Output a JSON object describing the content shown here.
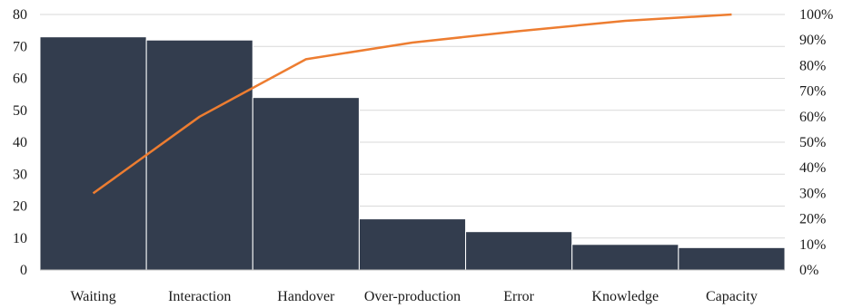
{
  "chart_data": {
    "type": "bar",
    "categories": [
      "Waiting",
      "Interaction",
      "Handover",
      "Over-production",
      "Error",
      "Knowledge",
      "Capacity"
    ],
    "series": [
      {
        "type": "bar",
        "values": [
          73,
          72,
          54,
          16,
          12,
          8,
          7
        ],
        "color": "#333d4e"
      },
      {
        "type": "line",
        "axis": "right",
        "values": [
          30,
          60,
          82.5,
          89,
          93.5,
          97.5,
          100
        ],
        "color": "#ed7d31"
      }
    ],
    "left_axis": {
      "ylim": [
        0,
        80
      ],
      "ticks": [
        "0",
        "10",
        "20",
        "30",
        "40",
        "50",
        "60",
        "70",
        "80"
      ]
    },
    "right_axis": {
      "ylim": [
        0,
        100
      ],
      "ticks": [
        "0%",
        "10%",
        "20%",
        "30%",
        "40%",
        "50%",
        "60%",
        "70%",
        "80%",
        "90%",
        "100%"
      ]
    },
    "grid": true,
    "grid_color": "#d9d9d9",
    "title": "",
    "xlabel": "",
    "ylabel": ""
  }
}
